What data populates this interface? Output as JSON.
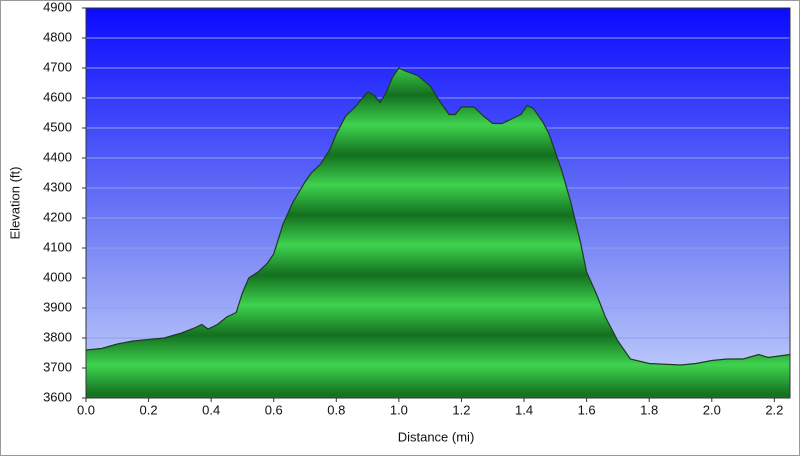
{
  "chart_data": {
    "type": "area",
    "x_label": "Distance (mi)",
    "y_label": "Elevation (ft)",
    "x": [
      0.0,
      0.05,
      0.1,
      0.15,
      0.2,
      0.25,
      0.3,
      0.35,
      0.37,
      0.39,
      0.42,
      0.45,
      0.48,
      0.5,
      0.52,
      0.55,
      0.58,
      0.6,
      0.63,
      0.66,
      0.7,
      0.72,
      0.75,
      0.78,
      0.8,
      0.83,
      0.86,
      0.9,
      0.92,
      0.94,
      0.96,
      0.98,
      1.0,
      1.02,
      1.06,
      1.1,
      1.13,
      1.16,
      1.18,
      1.2,
      1.24,
      1.27,
      1.3,
      1.33,
      1.36,
      1.39,
      1.41,
      1.43,
      1.46,
      1.48,
      1.5,
      1.52,
      1.55,
      1.58,
      1.6,
      1.63,
      1.66,
      1.7,
      1.74,
      1.8,
      1.9,
      1.95,
      2.0,
      2.05,
      2.1,
      2.15,
      2.18,
      2.25
    ],
    "values": [
      3760,
      3765,
      3780,
      3790,
      3795,
      3800,
      3815,
      3835,
      3845,
      3830,
      3845,
      3870,
      3885,
      3950,
      4000,
      4020,
      4050,
      4080,
      4180,
      4250,
      4320,
      4350,
      4380,
      4430,
      4480,
      4540,
      4570,
      4620,
      4610,
      4585,
      4620,
      4670,
      4700,
      4690,
      4675,
      4640,
      4590,
      4545,
      4545,
      4570,
      4570,
      4540,
      4515,
      4515,
      4530,
      4545,
      4575,
      4565,
      4520,
      4480,
      4420,
      4360,
      4250,
      4120,
      4020,
      3950,
      3870,
      3790,
      3730,
      3715,
      3710,
      3715,
      3725,
      3730,
      3730,
      3745,
      3735,
      3745
    ],
    "color": "#22a838",
    "xlim": [
      0,
      2.25
    ],
    "xticks": [
      {
        "value": 0,
        "label": "0.0"
      },
      0.2,
      0.4,
      0.6,
      0.8,
      {
        "value": 1,
        "label": "1.0"
      },
      1.2,
      1.4,
      1.6,
      1.8,
      {
        "value": 2,
        "label": "2.0"
      },
      2.2
    ],
    "ylim": [
      3600,
      4900
    ],
    "yticks": [
      3600,
      3700,
      3800,
      3900,
      4000,
      4100,
      4200,
      4300,
      4400,
      4500,
      4600,
      4700,
      4800,
      4900
    ],
    "grid": true
  }
}
